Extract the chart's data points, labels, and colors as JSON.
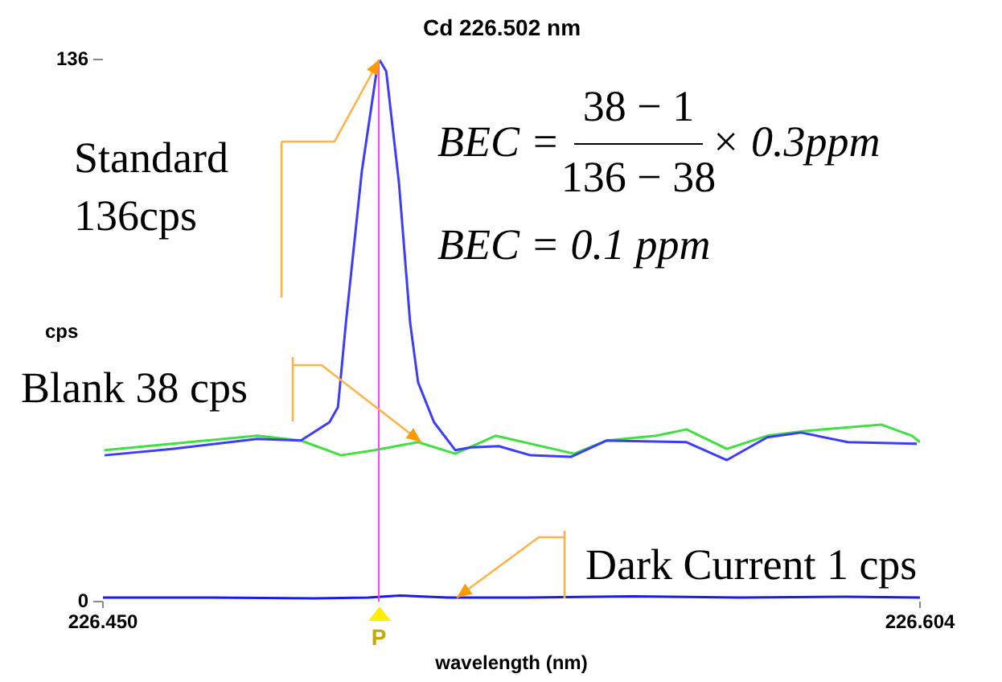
{
  "chart_data": {
    "type": "line",
    "title": "Cd 226.502 nm",
    "xlabel": "wavelength (nm)",
    "ylabel": "cps",
    "xlim": [
      226.45,
      226.604
    ],
    "xticks": [
      {
        "value": 226.45,
        "label": "226.450"
      },
      {
        "value": 226.604,
        "label": "226.604"
      }
    ],
    "ylim": [
      0,
      136
    ],
    "yticks": [
      0,
      136
    ],
    "grid": false,
    "legend": false,
    "marker": "none",
    "line_style": "solid",
    "series": [
      {
        "color": "#3c3cff",
        "x": [
          226.4503,
          226.463,
          226.4791,
          226.4873,
          226.4927,
          226.4943,
          226.4958,
          226.4988,
          226.5018,
          226.5021,
          226.5034,
          226.5058,
          226.5079,
          226.5094,
          226.5124,
          226.5164,
          226.5194,
          226.5246,
          226.5306,
          226.5382,
          226.5449,
          226.56,
          226.5676,
          226.5752,
          226.5816,
          226.5904,
          226.6034
        ],
        "values": [
          36.7,
          38.3,
          40.8,
          40.4,
          45,
          48.8,
          70,
          108,
          135,
          136,
          133,
          105,
          70,
          55,
          45,
          38,
          38.7,
          39,
          36.7,
          36.3,
          40.4,
          40,
          35.5,
          41.2,
          42.4,
          40,
          39.6
        ]
      },
      {
        "color": "#40e040",
        "x": [
          226.4503,
          226.4791,
          226.4873,
          226.4949,
          226.5012,
          226.5094,
          226.5164,
          226.524,
          226.5388,
          226.5449,
          226.5543,
          226.56,
          226.5676,
          226.5752,
          226.5822,
          226.5967,
          226.6025,
          226.604
        ],
        "values": [
          38,
          41.6,
          40.4,
          36.7,
          38,
          40,
          37.1,
          41.6,
          37.1,
          40.4,
          41.6,
          43.2,
          38.3,
          41.6,
          42.8,
          44.4,
          41.6,
          40
        ]
      },
      {
        "color": "#1a1aee",
        "x": [
          226.45,
          226.47,
          226.49,
          226.5,
          226.506,
          226.515,
          226.53,
          226.55,
          226.57,
          226.59,
          226.604
        ],
        "values": [
          1,
          1,
          0.8,
          1,
          1.5,
          1,
          1,
          1.3,
          1,
          1.2,
          1
        ]
      }
    ],
    "ref_lines": [
      {
        "axis": "x",
        "value": 226.502,
        "label": "P",
        "color": "#ff40ff"
      }
    ],
    "annotations": [
      {
        "text": "Standard\n136cps",
        "x": 226.5021,
        "y": 136
      },
      {
        "text": "Blank 38 cps",
        "x": 226.51,
        "y": 40
      },
      {
        "text": "Dark Current 1 cps",
        "x": 226.5167,
        "y": 1
      },
      "BEC =",
      "38 − 1",
      "136 − 38",
      "× 0.3ppm",
      "BEC = 0.1 ppm"
    ]
  }
}
